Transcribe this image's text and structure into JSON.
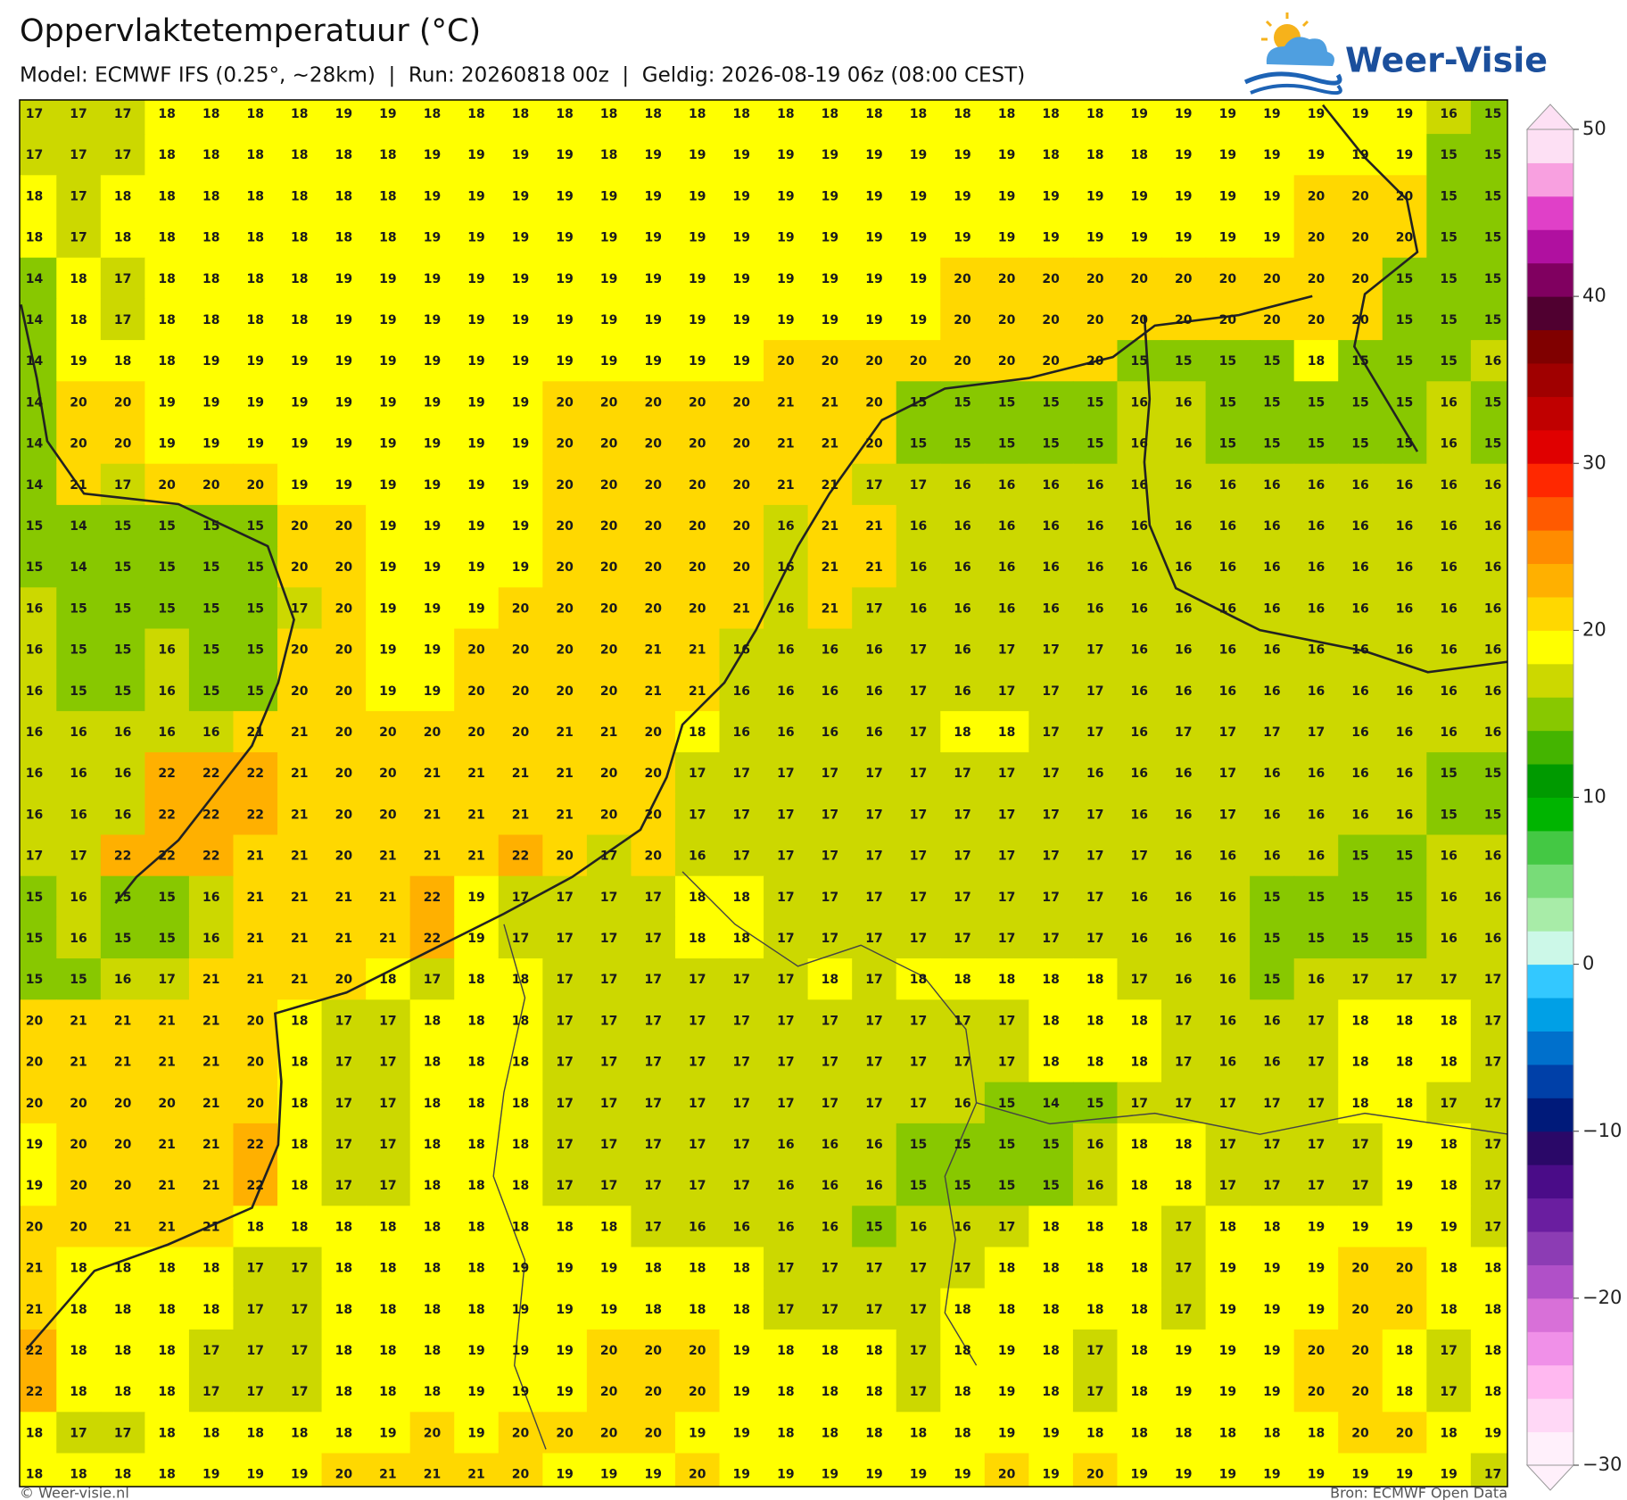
{
  "header": {
    "title": "Oppervlaktetemperatuur (°C)",
    "subtitle": "Model: ECMWF IFS (0.25°, ~28km)  |  Run: 20260818 00z  |  Geldig: 2026-08-19 06z (08:00 CEST)"
  },
  "logo": {
    "text": "Weer-Visie"
  },
  "grid": {
    "values": [
      [
        17,
        17,
        17,
        18,
        18,
        18,
        18,
        19,
        19,
        18,
        18,
        18,
        18,
        18,
        18,
        18,
        18,
        18,
        18,
        18,
        18,
        18,
        18,
        18,
        18,
        19,
        19,
        19,
        19,
        19,
        19,
        19,
        16,
        15
      ],
      [
        17,
        17,
        17,
        18,
        18,
        18,
        18,
        18,
        18,
        19,
        19,
        19,
        19,
        18,
        19,
        19,
        19,
        19,
        19,
        19,
        19,
        19,
        19,
        18,
        18,
        18,
        19,
        19,
        19,
        19,
        19,
        19,
        15,
        15
      ],
      [
        18,
        17,
        18,
        18,
        18,
        18,
        18,
        18,
        18,
        19,
        19,
        19,
        19,
        19,
        19,
        19,
        19,
        19,
        19,
        19,
        19,
        19,
        19,
        19,
        19,
        19,
        19,
        19,
        19,
        20,
        20,
        20,
        15,
        15
      ],
      [
        18,
        17,
        18,
        18,
        18,
        18,
        18,
        18,
        18,
        19,
        19,
        19,
        19,
        19,
        19,
        19,
        19,
        19,
        19,
        19,
        19,
        19,
        19,
        19,
        19,
        19,
        19,
        19,
        19,
        20,
        20,
        20,
        15,
        15
      ],
      [
        14,
        18,
        17,
        18,
        18,
        18,
        18,
        19,
        19,
        19,
        19,
        19,
        19,
        19,
        19,
        19,
        19,
        19,
        19,
        19,
        19,
        20,
        20,
        20,
        20,
        20,
        20,
        20,
        20,
        20,
        20,
        15,
        15,
        15
      ],
      [
        14,
        18,
        17,
        18,
        18,
        18,
        18,
        19,
        19,
        19,
        19,
        19,
        19,
        19,
        19,
        19,
        19,
        19,
        19,
        19,
        19,
        20,
        20,
        20,
        20,
        20,
        20,
        20,
        20,
        20,
        20,
        15,
        15,
        15
      ],
      [
        14,
        19,
        18,
        18,
        19,
        19,
        19,
        19,
        19,
        19,
        19,
        19,
        19,
        19,
        19,
        19,
        19,
        20,
        20,
        20,
        20,
        20,
        20,
        20,
        20,
        15,
        15,
        15,
        15,
        18,
        15,
        15,
        15,
        16
      ],
      [
        14,
        20,
        20,
        19,
        19,
        19,
        19,
        19,
        19,
        19,
        19,
        19,
        20,
        20,
        20,
        20,
        20,
        21,
        21,
        20,
        15,
        15,
        15,
        15,
        15,
        16,
        16,
        15,
        15,
        15,
        15,
        15,
        16,
        15
      ],
      [
        14,
        20,
        20,
        19,
        19,
        19,
        19,
        19,
        19,
        19,
        19,
        19,
        20,
        20,
        20,
        20,
        20,
        21,
        21,
        20,
        15,
        15,
        15,
        15,
        15,
        16,
        16,
        15,
        15,
        15,
        15,
        15,
        16,
        15
      ],
      [
        14,
        21,
        17,
        20,
        20,
        20,
        19,
        19,
        19,
        19,
        19,
        19,
        20,
        20,
        20,
        20,
        20,
        21,
        21,
        17,
        17,
        16,
        16,
        16,
        16,
        16,
        16,
        16,
        16,
        16,
        16,
        16,
        16,
        16
      ],
      [
        15,
        14,
        15,
        15,
        15,
        15,
        20,
        20,
        19,
        19,
        19,
        19,
        20,
        20,
        20,
        20,
        20,
        16,
        21,
        21,
        16,
        16,
        16,
        16,
        16,
        16,
        16,
        16,
        16,
        16,
        16,
        16,
        16,
        16
      ],
      [
        15,
        14,
        15,
        15,
        15,
        15,
        20,
        20,
        19,
        19,
        19,
        19,
        20,
        20,
        20,
        20,
        20,
        16,
        21,
        21,
        16,
        16,
        16,
        16,
        16,
        16,
        16,
        16,
        16,
        16,
        16,
        16,
        16,
        16
      ],
      [
        16,
        15,
        15,
        15,
        15,
        15,
        17,
        20,
        19,
        19,
        19,
        20,
        20,
        20,
        20,
        20,
        21,
        16,
        21,
        17,
        16,
        16,
        16,
        16,
        16,
        16,
        16,
        16,
        16,
        16,
        16,
        16,
        16,
        16
      ],
      [
        16,
        15,
        15,
        16,
        15,
        15,
        20,
        20,
        19,
        19,
        20,
        20,
        20,
        20,
        21,
        21,
        16,
        16,
        16,
        16,
        17,
        16,
        17,
        17,
        17,
        16,
        16,
        16,
        16,
        16,
        16,
        16,
        16,
        16
      ],
      [
        16,
        15,
        15,
        16,
        15,
        15,
        20,
        20,
        19,
        19,
        20,
        20,
        20,
        20,
        21,
        21,
        16,
        16,
        16,
        16,
        17,
        16,
        17,
        17,
        17,
        16,
        16,
        16,
        16,
        16,
        16,
        16,
        16,
        16
      ],
      [
        16,
        16,
        16,
        16,
        16,
        21,
        21,
        20,
        20,
        20,
        20,
        20,
        21,
        21,
        20,
        18,
        16,
        16,
        16,
        16,
        17,
        18,
        18,
        17,
        17,
        16,
        17,
        17,
        17,
        17,
        16,
        16,
        16,
        16
      ],
      [
        16,
        16,
        16,
        22,
        22,
        22,
        21,
        20,
        20,
        21,
        21,
        21,
        21,
        20,
        20,
        17,
        17,
        17,
        17,
        17,
        17,
        17,
        17,
        17,
        16,
        16,
        16,
        17,
        16,
        16,
        16,
        16,
        15,
        15
      ],
      [
        16,
        16,
        16,
        22,
        22,
        22,
        21,
        20,
        20,
        21,
        21,
        21,
        21,
        20,
        20,
        17,
        17,
        17,
        17,
        17,
        17,
        17,
        17,
        17,
        17,
        16,
        16,
        17,
        16,
        16,
        16,
        16,
        15,
        15
      ],
      [
        17,
        17,
        22,
        22,
        22,
        21,
        21,
        20,
        21,
        21,
        21,
        22,
        20,
        17,
        20,
        16,
        17,
        17,
        17,
        17,
        17,
        17,
        17,
        17,
        17,
        17,
        16,
        16,
        16,
        16,
        15,
        15,
        16,
        16
      ],
      [
        15,
        16,
        15,
        15,
        16,
        21,
        21,
        21,
        21,
        22,
        19,
        17,
        17,
        17,
        17,
        18,
        18,
        17,
        17,
        17,
        17,
        17,
        17,
        17,
        17,
        16,
        16,
        16,
        15,
        15,
        15,
        15,
        16,
        16
      ],
      [
        15,
        16,
        15,
        15,
        16,
        21,
        21,
        21,
        21,
        22,
        19,
        17,
        17,
        17,
        17,
        18,
        18,
        17,
        17,
        17,
        17,
        17,
        17,
        17,
        17,
        16,
        16,
        16,
        15,
        15,
        15,
        15,
        16,
        16
      ],
      [
        15,
        15,
        16,
        17,
        21,
        21,
        21,
        20,
        18,
        17,
        18,
        18,
        17,
        17,
        17,
        17,
        17,
        17,
        18,
        17,
        18,
        18,
        18,
        18,
        18,
        17,
        16,
        16,
        15,
        16,
        17,
        17,
        17,
        17
      ],
      [
        20,
        21,
        21,
        21,
        21,
        20,
        18,
        17,
        17,
        18,
        18,
        18,
        17,
        17,
        17,
        17,
        17,
        17,
        17,
        17,
        17,
        17,
        17,
        18,
        18,
        18,
        17,
        16,
        16,
        17,
        18,
        18,
        18,
        17
      ],
      [
        20,
        21,
        21,
        21,
        21,
        20,
        18,
        17,
        17,
        18,
        18,
        18,
        17,
        17,
        17,
        17,
        17,
        17,
        17,
        17,
        17,
        17,
        17,
        18,
        18,
        18,
        17,
        16,
        16,
        17,
        18,
        18,
        18,
        17
      ],
      [
        20,
        20,
        20,
        20,
        21,
        20,
        18,
        17,
        17,
        18,
        18,
        18,
        17,
        17,
        17,
        17,
        17,
        17,
        17,
        17,
        17,
        16,
        15,
        14,
        15,
        17,
        17,
        17,
        17,
        17,
        18,
        18,
        17,
        17
      ],
      [
        19,
        20,
        20,
        21,
        21,
        22,
        18,
        17,
        17,
        18,
        18,
        18,
        17,
        17,
        17,
        17,
        17,
        16,
        16,
        16,
        15,
        15,
        15,
        15,
        16,
        18,
        18,
        17,
        17,
        17,
        17,
        19,
        18,
        17
      ],
      [
        19,
        20,
        20,
        21,
        21,
        22,
        18,
        17,
        17,
        18,
        18,
        18,
        17,
        17,
        17,
        17,
        17,
        16,
        16,
        16,
        15,
        15,
        15,
        15,
        16,
        18,
        18,
        17,
        17,
        17,
        17,
        19,
        18,
        17
      ],
      [
        20,
        20,
        21,
        21,
        21,
        18,
        18,
        18,
        18,
        18,
        18,
        18,
        18,
        18,
        17,
        16,
        16,
        16,
        16,
        15,
        16,
        16,
        17,
        18,
        18,
        18,
        17,
        18,
        18,
        19,
        19,
        19,
        19,
        17
      ],
      [
        21,
        18,
        18,
        18,
        18,
        17,
        17,
        18,
        18,
        18,
        18,
        19,
        19,
        19,
        18,
        18,
        18,
        17,
        17,
        17,
        17,
        17,
        18,
        18,
        18,
        18,
        17,
        19,
        19,
        19,
        20,
        20,
        18,
        18
      ],
      [
        21,
        18,
        18,
        18,
        18,
        17,
        17,
        18,
        18,
        18,
        18,
        19,
        19,
        19,
        18,
        18,
        18,
        17,
        17,
        17,
        17,
        18,
        18,
        18,
        18,
        18,
        17,
        19,
        19,
        19,
        20,
        20,
        18,
        18
      ],
      [
        22,
        18,
        18,
        18,
        17,
        17,
        17,
        18,
        18,
        18,
        19,
        19,
        19,
        20,
        20,
        20,
        19,
        18,
        18,
        18,
        17,
        18,
        19,
        18,
        17,
        18,
        19,
        19,
        19,
        20,
        20,
        18,
        17,
        18
      ],
      [
        22,
        18,
        18,
        18,
        17,
        17,
        17,
        18,
        18,
        18,
        19,
        19,
        19,
        20,
        20,
        20,
        19,
        18,
        18,
        18,
        17,
        18,
        19,
        18,
        17,
        18,
        19,
        19,
        19,
        20,
        20,
        18,
        17,
        18
      ],
      [
        18,
        17,
        17,
        18,
        18,
        18,
        18,
        18,
        19,
        20,
        19,
        20,
        20,
        20,
        20,
        19,
        19,
        18,
        18,
        18,
        18,
        18,
        19,
        19,
        18,
        18,
        18,
        18,
        18,
        18,
        20,
        20,
        18,
        19
      ],
      [
        18,
        18,
        18,
        18,
        19,
        19,
        19,
        20,
        21,
        21,
        21,
        20,
        19,
        19,
        19,
        20,
        19,
        19,
        19,
        19,
        19,
        19,
        20,
        19,
        20,
        19,
        19,
        19,
        19,
        19,
        19,
        19,
        19,
        17
      ]
    ]
  },
  "colorbar": {
    "lim": [
      -30,
      50
    ],
    "ticks": [
      {
        "value": -30,
        "label": "−30"
      },
      {
        "value": -20,
        "label": "−20"
      },
      {
        "value": -10,
        "label": "−10"
      },
      0,
      10,
      20,
      30,
      40,
      50
    ],
    "colors": [
      "#fff0fb",
      "#ffd8f6",
      "#ffb8f0",
      "#f090e8",
      "#d870d8",
      "#b050c8",
      "#8c3cb4",
      "#6a1ea0",
      "#4a0c88",
      "#2a0868",
      "#001a7a",
      "#0040a8",
      "#0070cc",
      "#00a0e6",
      "#33c8ff",
      "#ccf8e8",
      "#a8eca8",
      "#78dc78",
      "#44c844",
      "#00b400",
      "#009a00",
      "#44b400",
      "#88c800",
      "#ccd800",
      "#ffff00",
      "#ffd800",
      "#ffb000",
      "#ff8c00",
      "#ff5a00",
      "#ff2800",
      "#e00000",
      "#c00000",
      "#a00000",
      "#800000",
      "#500030",
      "#800060",
      "#b010a0",
      "#e040c8",
      "#f8a0e0",
      "#fde0f4"
    ]
  },
  "footer": {
    "left": "© Weer-visie.nl",
    "right": "Bron: ECMWF Open Data"
  }
}
